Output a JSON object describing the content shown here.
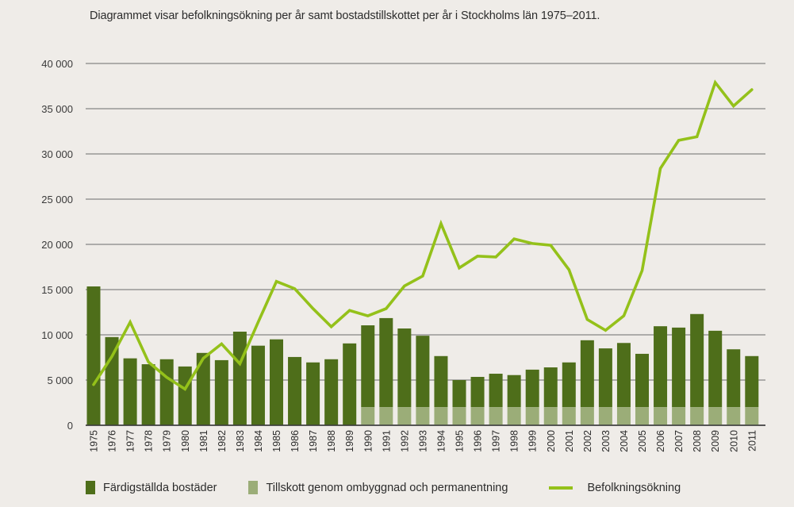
{
  "colors": {
    "background": "#efece8",
    "bar_completed": "#4e6e1a",
    "bar_conversion": "#9bad78",
    "line_population": "#94c11a",
    "grid": "#6b6b6b"
  },
  "chart_data": {
    "type": "bar+line",
    "title": "Diagrammet visar befolkningsökning per år samt bostadstillskottet per år i Stockholms län 1975–2011.",
    "xlabel": "",
    "ylabel": "",
    "ylim": [
      0,
      40000
    ],
    "yticks": [
      0,
      5000,
      10000,
      15000,
      20000,
      25000,
      30000,
      35000,
      40000
    ],
    "ytick_labels": [
      "0",
      "5 000",
      "10 000",
      "15 000",
      "20 000",
      "25 000",
      "30 000",
      "35 000",
      "40 000"
    ],
    "grid": true,
    "legend_position": "bottom",
    "categories": [
      "1975",
      "1976",
      "1977",
      "1978",
      "1979",
      "1980",
      "1981",
      "1982",
      "1983",
      "1984",
      "1985",
      "1986",
      "1987",
      "1988",
      "1989",
      "1990",
      "1991",
      "1992",
      "1993",
      "1994",
      "1995",
      "1996",
      "1997",
      "1998",
      "1999",
      "2000",
      "2001",
      "2002",
      "2003",
      "2004",
      "2005",
      "2006",
      "2007",
      "2008",
      "2009",
      "2010",
      "2011"
    ],
    "series": [
      {
        "name": "Färdigställda bostäder",
        "type": "bar",
        "stack_total": true,
        "values": [
          15350,
          9750,
          7400,
          6750,
          7300,
          6500,
          8000,
          7200,
          10350,
          8800,
          9500,
          7550,
          6950,
          7300,
          9050,
          11050,
          11850,
          10700,
          9900,
          7650,
          5000,
          5350,
          5700,
          5550,
          6150,
          6400,
          6950,
          9400,
          8500,
          9100,
          7900,
          10950,
          10800,
          12300,
          10450,
          8400,
          7650
        ]
      },
      {
        "name": "Tillskott genom ombyggnad och permanentning",
        "type": "bar",
        "values": [
          0,
          0,
          0,
          0,
          0,
          0,
          0,
          0,
          0,
          0,
          0,
          0,
          0,
          0,
          0,
          2000,
          2000,
          2000,
          2000,
          2000,
          2000,
          2000,
          2000,
          2000,
          2000,
          2000,
          2000,
          2000,
          2000,
          2000,
          2000,
          2000,
          2000,
          2000,
          2000,
          2000,
          2000
        ]
      },
      {
        "name": "Befolkningsökning",
        "type": "line",
        "values": [
          4500,
          7600,
          11400,
          7000,
          5300,
          4000,
          7400,
          9000,
          6800,
          11400,
          15900,
          15100,
          12900,
          10900,
          12700,
          12100,
          12900,
          15400,
          16500,
          22300,
          17400,
          18700,
          18600,
          20600,
          20100,
          19900,
          17200,
          11700,
          10500,
          12100,
          17100,
          28400,
          31500,
          31900,
          37900,
          35300,
          37100
        ]
      }
    ]
  },
  "legend": {
    "items": [
      {
        "label": "Färdigställda bostäder"
      },
      {
        "label": "Tillskott genom ombyggnad och permanentning"
      },
      {
        "label": "Befolkningsökning"
      }
    ]
  }
}
